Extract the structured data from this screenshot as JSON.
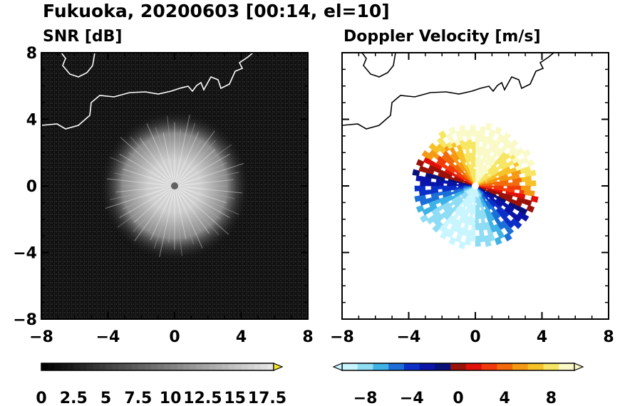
{
  "figure": {
    "title": "Fukuoka, 20200603 [00:14, el=10]"
  },
  "chart_data": [
    {
      "type": "heatmap",
      "title": "SNR [dB]",
      "xlim": [
        -8,
        8
      ],
      "ylim": [
        -8,
        8
      ],
      "x_ticks": [
        "−8",
        "−4",
        "0",
        "4",
        "8"
      ],
      "y_ticks": [
        "8",
        "4",
        "0",
        "−4",
        "−8"
      ],
      "echo_radius": 4.5,
      "radar_site": [
        0,
        0
      ],
      "colorbar": {
        "min": 0,
        "max": 18,
        "extend": "max",
        "tick_labels": [
          "0",
          "2.5",
          "5",
          "7.5",
          "10",
          "12.5",
          "15",
          "17.5"
        ],
        "colors": {
          "low": "#000000",
          "high": "#e6e6e6",
          "extend": "#f2e629"
        }
      },
      "background_color": "#141414",
      "coastline_color": "#ffffff"
    },
    {
      "type": "heatmap",
      "title": "Doppler Velocity [m/s]",
      "xlim": [
        -8,
        8
      ],
      "ylim": [
        -8,
        8
      ],
      "x_ticks": [
        "−8",
        "−4",
        "0",
        "4",
        "8"
      ],
      "y_ticks": [
        "8",
        "4",
        "0",
        "−4",
        "−8"
      ],
      "echo_radius": 3.9,
      "radar_site": [
        0,
        0
      ],
      "colorbar": {
        "min": -10,
        "max": 10,
        "extend": "both",
        "tick_labels": [
          "−8",
          "−4",
          "0",
          "4",
          "8"
        ],
        "colors": [
          "#c8f5ff",
          "#8fdcf5",
          "#3fb2e6",
          "#1c6fd8",
          "#0c2fc8",
          "#0a14a8",
          "#08107a",
          "#9a1208",
          "#e0100a",
          "#f23a0a",
          "#f26a0a",
          "#f59a14",
          "#f7c228",
          "#f7e664",
          "#fafac8"
        ]
      },
      "background_color": "#ffffff",
      "coastline_color": "#000000"
    }
  ]
}
